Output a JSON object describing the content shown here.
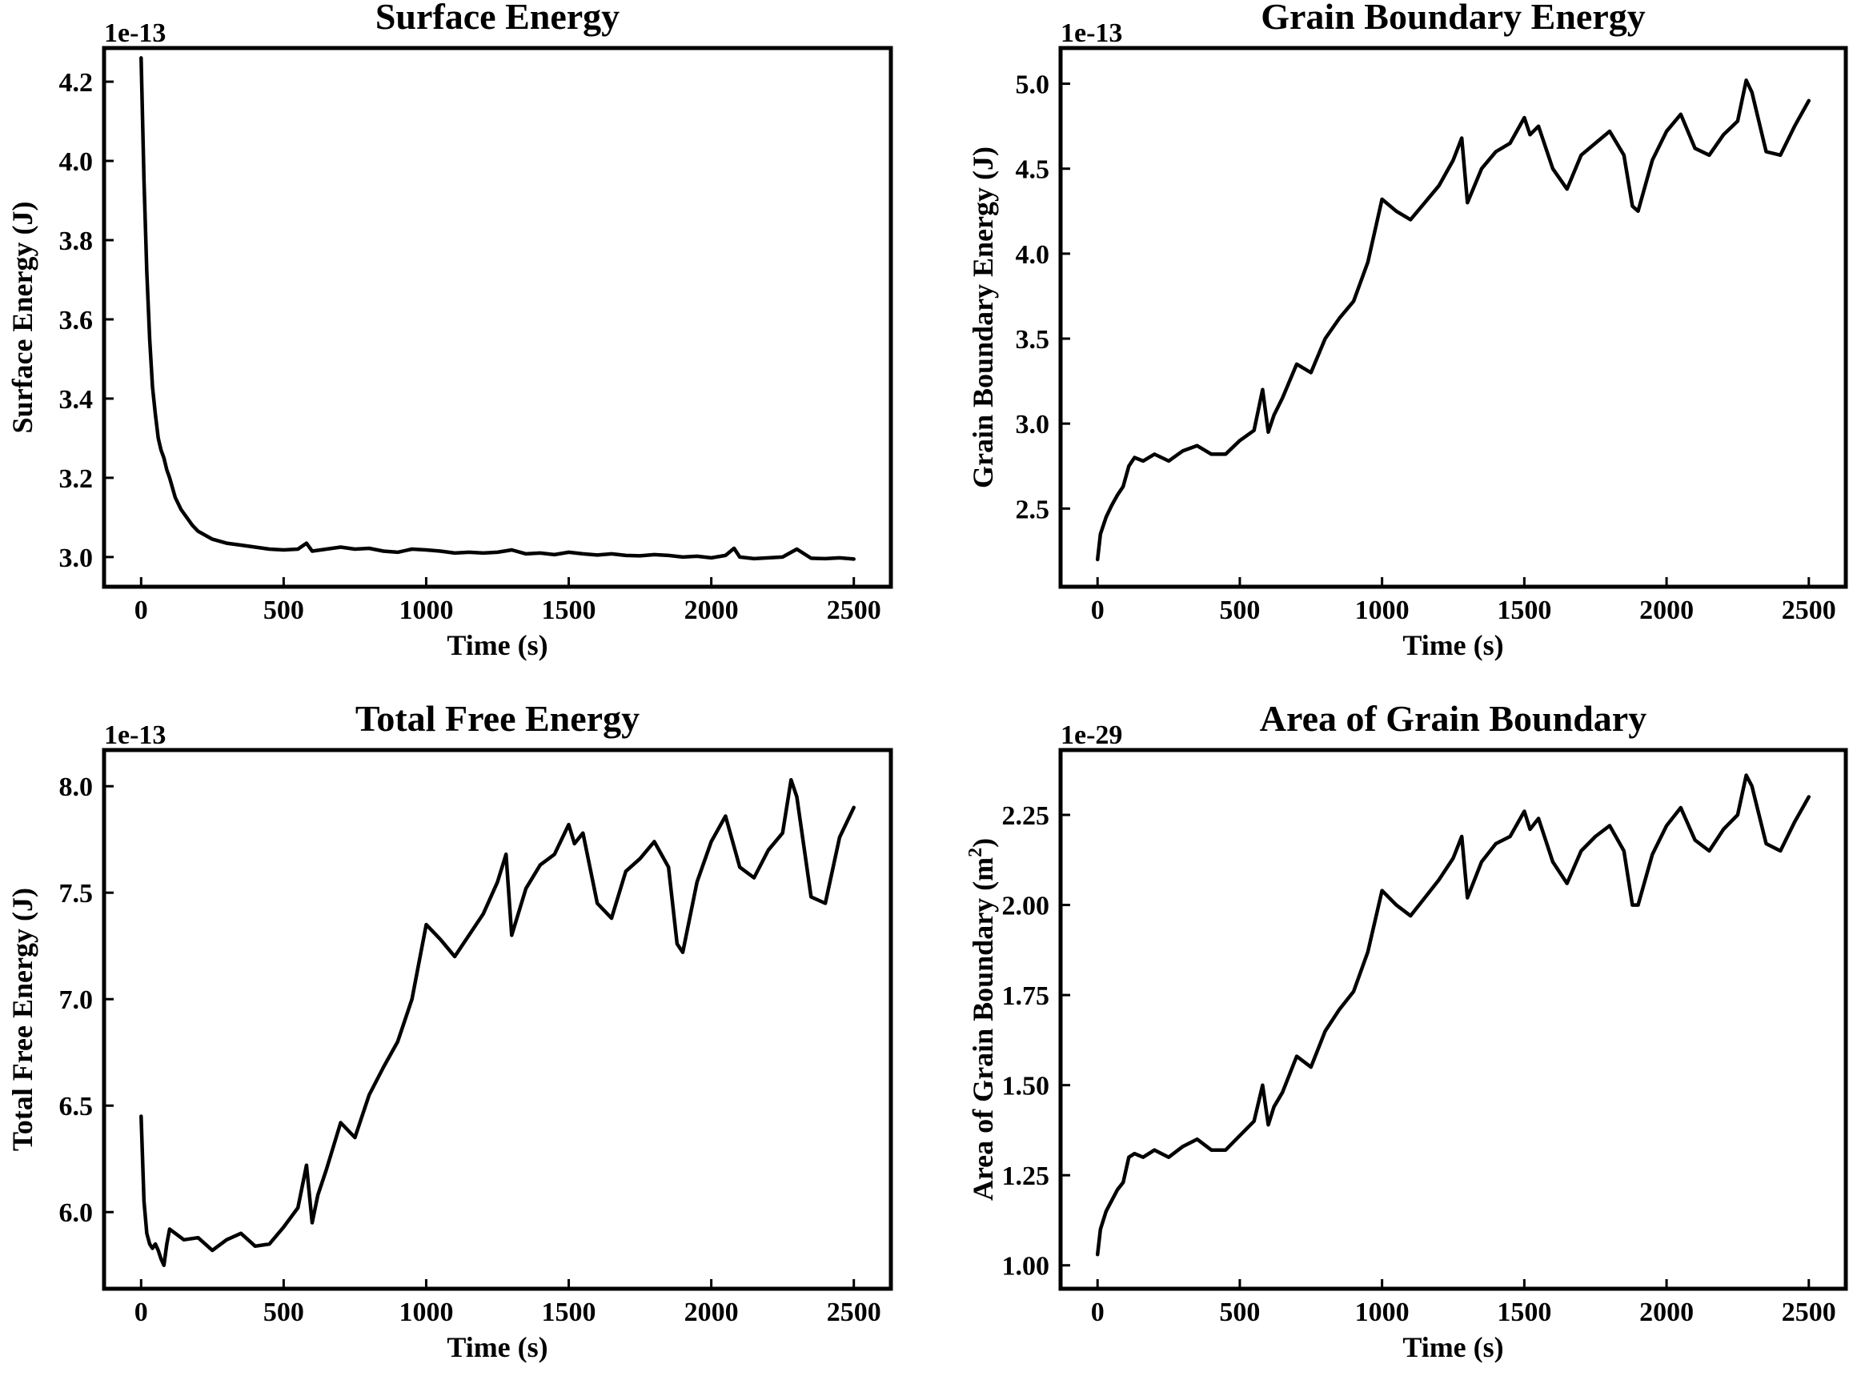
{
  "chart_data": [
    {
      "type": "line",
      "title": "Surface Energy",
      "xlabel": "Time (s)",
      "ylabel": "Surface Energy (J)",
      "multiplier": "1e-13",
      "xlim": [
        -130,
        2630
      ],
      "ylim": [
        2.925,
        4.285
      ],
      "xticks": [
        0,
        500,
        1000,
        1500,
        2000,
        2500
      ],
      "yticks": [
        3.0,
        3.2,
        3.4,
        3.6,
        3.8,
        4.0,
        4.2
      ],
      "yprecision": 1,
      "series": [
        {
          "color": "#000000",
          "x": [
            0,
            10,
            20,
            30,
            40,
            50,
            60,
            70,
            80,
            90,
            100,
            120,
            140,
            160,
            180,
            200,
            250,
            300,
            350,
            400,
            450,
            500,
            550,
            580,
            600,
            650,
            700,
            750,
            800,
            850,
            900,
            950,
            1000,
            1050,
            1100,
            1150,
            1200,
            1250,
            1300,
            1350,
            1400,
            1450,
            1500,
            1550,
            1600,
            1650,
            1700,
            1750,
            1800,
            1850,
            1900,
            1950,
            2000,
            2050,
            2080,
            2100,
            2150,
            2200,
            2250,
            2300,
            2350,
            2400,
            2450,
            2500
          ],
          "y": [
            4.26,
            3.95,
            3.72,
            3.55,
            3.43,
            3.36,
            3.3,
            3.27,
            3.25,
            3.22,
            3.2,
            3.15,
            3.12,
            3.1,
            3.08,
            3.065,
            3.045,
            3.035,
            3.03,
            3.025,
            3.02,
            3.018,
            3.02,
            3.035,
            3.015,
            3.02,
            3.025,
            3.02,
            3.022,
            3.015,
            3.012,
            3.02,
            3.018,
            3.015,
            3.01,
            3.012,
            3.01,
            3.012,
            3.018,
            3.008,
            3.01,
            3.006,
            3.012,
            3.008,
            3.005,
            3.008,
            3.004,
            3.003,
            3.006,
            3.004,
            3.0,
            3.002,
            2.998,
            3.004,
            3.022,
            3.0,
            2.996,
            2.998,
            3.0,
            3.02,
            2.997,
            2.996,
            2.998,
            2.995
          ]
        }
      ]
    },
    {
      "type": "line",
      "title": "Grain Boundary Energy",
      "xlabel": "Time (s)",
      "ylabel": "Grain Boundary Energy (J)",
      "multiplier": "1e-13",
      "xlim": [
        -130,
        2630
      ],
      "ylim": [
        2.04,
        5.21
      ],
      "xticks": [
        0,
        500,
        1000,
        1500,
        2000,
        2500
      ],
      "yticks": [
        2.5,
        3.0,
        3.5,
        4.0,
        4.5,
        5.0
      ],
      "yprecision": 1,
      "series": [
        {
          "color": "#000000",
          "x": [
            0,
            10,
            30,
            50,
            70,
            90,
            110,
            130,
            160,
            200,
            250,
            300,
            350,
            400,
            450,
            500,
            550,
            580,
            600,
            620,
            650,
            700,
            750,
            800,
            850,
            900,
            950,
            1000,
            1050,
            1100,
            1150,
            1200,
            1250,
            1280,
            1300,
            1350,
            1400,
            1450,
            1500,
            1520,
            1550,
            1600,
            1650,
            1700,
            1750,
            1800,
            1850,
            1880,
            1900,
            1950,
            2000,
            2050,
            2100,
            2150,
            2200,
            2250,
            2280,
            2300,
            2350,
            2400,
            2450,
            2500
          ],
          "y": [
            2.2,
            2.35,
            2.45,
            2.52,
            2.58,
            2.63,
            2.75,
            2.8,
            2.78,
            2.82,
            2.78,
            2.84,
            2.87,
            2.82,
            2.82,
            2.9,
            2.96,
            3.2,
            2.95,
            3.05,
            3.15,
            3.35,
            3.3,
            3.5,
            3.62,
            3.72,
            3.95,
            4.32,
            4.25,
            4.2,
            4.3,
            4.4,
            4.55,
            4.68,
            4.3,
            4.5,
            4.6,
            4.65,
            4.8,
            4.7,
            4.75,
            4.5,
            4.38,
            4.58,
            4.65,
            4.72,
            4.58,
            4.28,
            4.25,
            4.55,
            4.72,
            4.82,
            4.62,
            4.58,
            4.7,
            4.78,
            5.02,
            4.95,
            4.6,
            4.58,
            4.75,
            4.9
          ]
        }
      ]
    },
    {
      "type": "line",
      "title": "Total Free Energy",
      "xlabel": "Time (s)",
      "ylabel": "Total Free Energy (J)",
      "multiplier": "1e-13",
      "xlim": [
        -130,
        2630
      ],
      "ylim": [
        5.64,
        8.17
      ],
      "xticks": [
        0,
        500,
        1000,
        1500,
        2000,
        2500
      ],
      "yticks": [
        6.0,
        6.5,
        7.0,
        7.5,
        8.0
      ],
      "yprecision": 1,
      "series": [
        {
          "color": "#000000",
          "x": [
            0,
            10,
            20,
            30,
            40,
            50,
            60,
            70,
            80,
            90,
            100,
            120,
            150,
            200,
            250,
            300,
            350,
            400,
            450,
            500,
            550,
            580,
            600,
            620,
            650,
            700,
            750,
            800,
            850,
            900,
            950,
            1000,
            1050,
            1100,
            1150,
            1200,
            1250,
            1280,
            1300,
            1350,
            1400,
            1450,
            1500,
            1520,
            1550,
            1600,
            1650,
            1700,
            1750,
            1800,
            1850,
            1880,
            1900,
            1950,
            2000,
            2050,
            2100,
            2150,
            2200,
            2250,
            2280,
            2300,
            2350,
            2400,
            2450,
            2500
          ],
          "y": [
            6.45,
            6.05,
            5.9,
            5.85,
            5.83,
            5.85,
            5.82,
            5.78,
            5.75,
            5.85,
            5.92,
            5.9,
            5.87,
            5.88,
            5.82,
            5.87,
            5.9,
            5.84,
            5.85,
            5.93,
            6.02,
            6.22,
            5.95,
            6.08,
            6.2,
            6.42,
            6.35,
            6.55,
            6.68,
            6.8,
            7.0,
            7.35,
            7.28,
            7.2,
            7.3,
            7.4,
            7.55,
            7.68,
            7.3,
            7.52,
            7.63,
            7.68,
            7.82,
            7.73,
            7.78,
            7.45,
            7.38,
            7.6,
            7.66,
            7.74,
            7.62,
            7.26,
            7.22,
            7.55,
            7.74,
            7.86,
            7.62,
            7.57,
            7.7,
            7.78,
            8.03,
            7.95,
            7.48,
            7.45,
            7.76,
            7.9
          ]
        }
      ]
    },
    {
      "type": "line",
      "title": "Area of Grain Boundary",
      "xlabel": "Time (s)",
      "ylabel": "Area of Grain Boundary (m",
      "ylabel_sup": "2",
      "ylabel_end": ")",
      "multiplier": "1e-29",
      "xlim": [
        -130,
        2630
      ],
      "ylim": [
        0.935,
        2.43
      ],
      "xticks": [
        0,
        500,
        1000,
        1500,
        2000,
        2500
      ],
      "yticks": [
        1.0,
        1.25,
        1.5,
        1.75,
        2.0,
        2.25
      ],
      "yprecision": 2,
      "series": [
        {
          "color": "#000000",
          "x": [
            0,
            10,
            30,
            50,
            70,
            90,
            110,
            130,
            160,
            200,
            250,
            300,
            350,
            400,
            450,
            500,
            550,
            580,
            600,
            620,
            650,
            700,
            750,
            800,
            850,
            900,
            950,
            1000,
            1050,
            1100,
            1150,
            1200,
            1250,
            1280,
            1300,
            1350,
            1400,
            1450,
            1500,
            1520,
            1550,
            1600,
            1650,
            1700,
            1750,
            1800,
            1850,
            1880,
            1900,
            1950,
            2000,
            2050,
            2100,
            2150,
            2200,
            2250,
            2280,
            2300,
            2350,
            2400,
            2450,
            2500
          ],
          "y": [
            1.03,
            1.1,
            1.15,
            1.18,
            1.21,
            1.23,
            1.3,
            1.31,
            1.3,
            1.32,
            1.3,
            1.33,
            1.35,
            1.32,
            1.32,
            1.36,
            1.4,
            1.5,
            1.39,
            1.44,
            1.48,
            1.58,
            1.55,
            1.65,
            1.71,
            1.76,
            1.87,
            2.04,
            2.0,
            1.97,
            2.02,
            2.07,
            2.13,
            2.19,
            2.02,
            2.12,
            2.17,
            2.19,
            2.26,
            2.21,
            2.24,
            2.12,
            2.06,
            2.15,
            2.19,
            2.22,
            2.15,
            2.0,
            2.0,
            2.14,
            2.22,
            2.27,
            2.18,
            2.15,
            2.21,
            2.25,
            2.36,
            2.33,
            2.17,
            2.15,
            2.23,
            2.3
          ]
        }
      ]
    }
  ]
}
